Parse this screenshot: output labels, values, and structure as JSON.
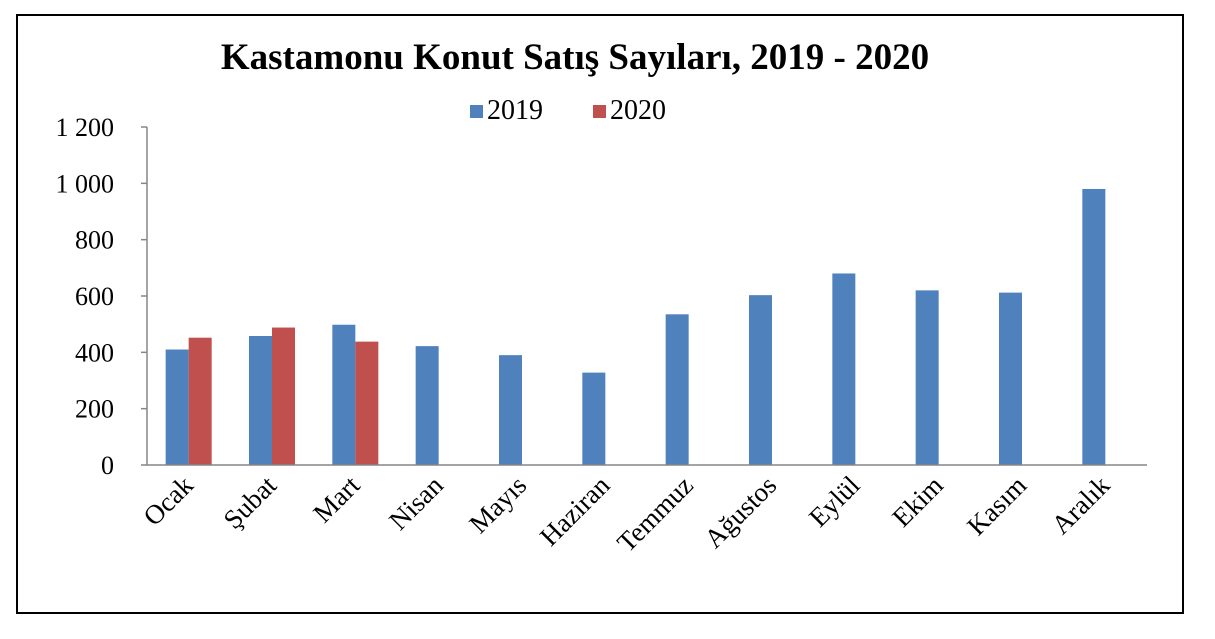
{
  "chart_data": {
    "type": "bar",
    "title": "Kastamonu Konut Satış Sayıları, 2019 - 2020",
    "categories": [
      "Ocak",
      "Şubat",
      "Mart",
      "Nisan",
      "Mayıs",
      "Haziran",
      "Temmuz",
      "Ağustos",
      "Eylül",
      "Ekim",
      "Kasım",
      "Aralık"
    ],
    "series": [
      {
        "name": "2019",
        "color": "#4F81BD",
        "values": [
          410,
          458,
          498,
          422,
          390,
          328,
          535,
          603,
          680,
          620,
          612,
          980
        ]
      },
      {
        "name": "2020",
        "color": "#C0504D",
        "values": [
          452,
          488,
          438,
          null,
          null,
          null,
          null,
          null,
          null,
          null,
          null,
          null
        ]
      }
    ],
    "yticks": [
      "0",
      "200",
      "400",
      "600",
      "800",
      "1 000",
      "1 200"
    ],
    "ylim": [
      0,
      1200
    ],
    "legend": "top",
    "grid": false
  }
}
